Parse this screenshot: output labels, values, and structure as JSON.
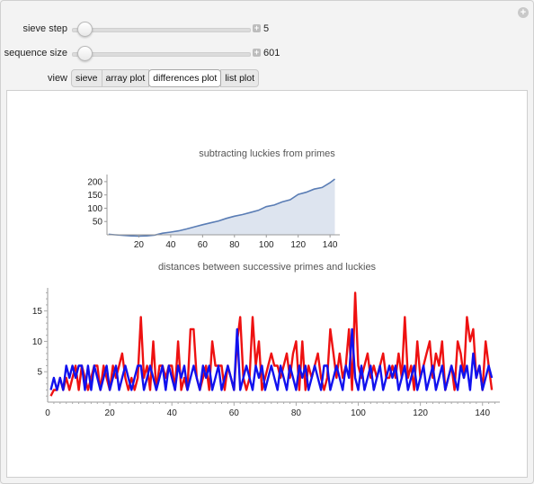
{
  "controls": {
    "sieve_step": {
      "label": "sieve step",
      "value": "5",
      "fraction": 0.0
    },
    "sequence_size": {
      "label": "sequence size",
      "value": "601",
      "fraction": 0.0
    },
    "view": {
      "label": "view",
      "tabs": [
        {
          "label": "sieve",
          "active": false
        },
        {
          "label": "array plot",
          "active": false
        },
        {
          "label": "differences plot",
          "active": true
        },
        {
          "label": "list plot",
          "active": false
        }
      ]
    }
  },
  "plots": {
    "top_title": "subtracting luckies from primes",
    "bottom_title": "distances between successive primes and luckies"
  },
  "chart_data": [
    {
      "type": "area",
      "title": "subtracting luckies from primes",
      "x_ticks": [
        20,
        40,
        60,
        80,
        100,
        120,
        140
      ],
      "y_ticks": [
        50,
        100,
        150,
        200
      ],
      "xlim": [
        0,
        145
      ],
      "ylim": [
        0,
        220
      ],
      "colors": {
        "line": "#5a7db5",
        "fill": "#dde4ef"
      },
      "x": [
        1,
        5,
        10,
        15,
        20,
        25,
        30,
        35,
        40,
        45,
        50,
        55,
        60,
        65,
        70,
        75,
        80,
        85,
        90,
        95,
        100,
        105,
        110,
        115,
        120,
        125,
        130,
        135,
        140,
        143
      ],
      "y": [
        2,
        0,
        -2,
        -4,
        -5,
        -4,
        -1,
        6,
        10,
        15,
        22,
        30,
        38,
        45,
        52,
        62,
        70,
        76,
        84,
        92,
        106,
        112,
        124,
        132,
        152,
        160,
        172,
        178,
        196,
        210
      ]
    },
    {
      "type": "line",
      "title": "distances between successive primes and luckies",
      "x_ticks": [
        0,
        20,
        40,
        60,
        80,
        100,
        120,
        140
      ],
      "y_ticks": [
        5,
        10,
        15
      ],
      "xlim": [
        0,
        145
      ],
      "ylim": [
        0,
        18.5
      ],
      "series": [
        {
          "color": "#ee1111",
          "values": [
            1,
            2,
            2,
            4,
            2,
            4,
            2,
            4,
            6,
            2,
            6,
            4,
            2,
            4,
            6,
            6,
            2,
            6,
            4,
            2,
            6,
            4,
            6,
            8,
            4,
            2,
            4,
            2,
            4,
            14,
            4,
            6,
            2,
            10,
            2,
            6,
            6,
            4,
            6,
            6,
            2,
            10,
            2,
            4,
            2,
            12,
            12,
            4,
            2,
            4,
            6,
            2,
            10,
            6,
            6,
            6,
            2,
            6,
            4,
            2,
            10,
            14,
            4,
            2,
            4,
            14,
            6,
            10,
            2,
            4,
            6,
            8,
            6,
            6,
            4,
            6,
            8,
            4,
            8,
            10,
            2,
            10,
            2,
            6,
            4,
            6,
            8,
            4,
            2,
            4,
            12,
            8,
            4,
            8,
            4,
            6,
            12,
            2,
            18,
            6,
            4,
            6,
            8,
            4,
            6,
            4,
            6,
            8,
            4,
            4,
            6,
            4,
            8,
            4,
            14,
            4,
            6,
            2,
            10,
            4,
            6,
            8,
            10,
            4,
            8,
            6,
            10,
            2,
            4,
            6,
            2,
            10,
            8,
            4,
            14,
            10,
            12,
            4,
            6,
            2,
            10,
            6,
            2
          ]
        },
        {
          "color": "#1111ee",
          "values": [
            2,
            4,
            2,
            4,
            2,
            6,
            4,
            6,
            4,
            6,
            6,
            2,
            6,
            2,
            6,
            4,
            2,
            4,
            6,
            2,
            4,
            6,
            2,
            4,
            6,
            4,
            2,
            4,
            6,
            6,
            2,
            4,
            6,
            4,
            2,
            4,
            6,
            2,
            6,
            4,
            2,
            6,
            4,
            6,
            2,
            4,
            6,
            4,
            2,
            6,
            4,
            6,
            2,
            4,
            6,
            2,
            4,
            6,
            4,
            2,
            12,
            2,
            4,
            6,
            4,
            2,
            6,
            4,
            6,
            2,
            4,
            6,
            4,
            2,
            6,
            4,
            2,
            6,
            4,
            2,
            6,
            4,
            6,
            2,
            4,
            6,
            4,
            2,
            6,
            6,
            2,
            4,
            6,
            4,
            2,
            6,
            4,
            12,
            4,
            2,
            6,
            2,
            4,
            6,
            2,
            4,
            6,
            2,
            4,
            6,
            4,
            6,
            2,
            4,
            6,
            2,
            4,
            6,
            2,
            4,
            6,
            2,
            4,
            6,
            2,
            4,
            6,
            2,
            4,
            6,
            4,
            2,
            6,
            4,
            6,
            2,
            8,
            4,
            6,
            2,
            4,
            6,
            4
          ]
        }
      ]
    }
  ]
}
